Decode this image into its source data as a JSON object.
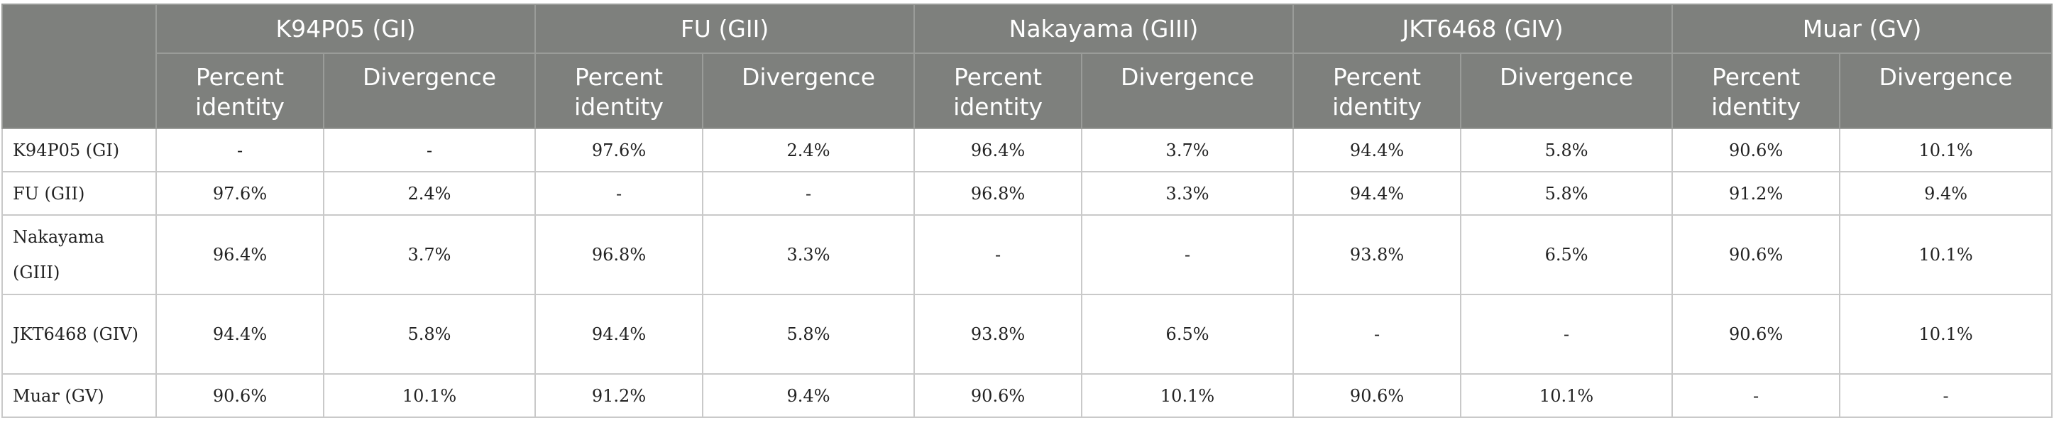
{
  "table": {
    "groups": [
      {
        "label": "K94P05 (GI)"
      },
      {
        "label": "FU (GII)"
      },
      {
        "label": "Nakayama (GIII)"
      },
      {
        "label": "JKT6468 (GIV)"
      },
      {
        "label": "Muar (GV)"
      }
    ],
    "sub_headers": {
      "percent_identity": "Percent identity",
      "divergence": "Divergence"
    },
    "rows": [
      {
        "label": "K94P05 (GI)",
        "cells": [
          "-",
          "-",
          "97.6%",
          "2.4%",
          "96.4%",
          "3.7%",
          "94.4%",
          "5.8%",
          "90.6%",
          "10.1%"
        ]
      },
      {
        "label": "FU (GII)",
        "cells": [
          "97.6%",
          "2.4%",
          "-",
          "-",
          "96.8%",
          "3.3%",
          "94.4%",
          "5.8%",
          "91.2%",
          "9.4%"
        ]
      },
      {
        "label": "Nakayama (GIII)",
        "cells": [
          "96.4%",
          "3.7%",
          "96.8%",
          "3.3%",
          "-",
          "-",
          "93.8%",
          "6.5%",
          "90.6%",
          "10.1%"
        ]
      },
      {
        "label": "JKT6468 (GIV)",
        "cells": [
          "94.4%",
          "5.8%",
          "94.4%",
          "5.8%",
          "93.8%",
          "6.5%",
          "-",
          "-",
          "90.6%",
          "10.1%"
        ]
      },
      {
        "label": "Muar (GV)",
        "cells": [
          "90.6%",
          "10.1%",
          "91.2%",
          "9.4%",
          "90.6%",
          "10.1%",
          "90.6%",
          "10.1%",
          "-",
          "-"
        ]
      }
    ]
  },
  "colors": {
    "header_bg": "#7e807d",
    "header_text": "#ffffff",
    "grid": "#c9c9c9"
  }
}
